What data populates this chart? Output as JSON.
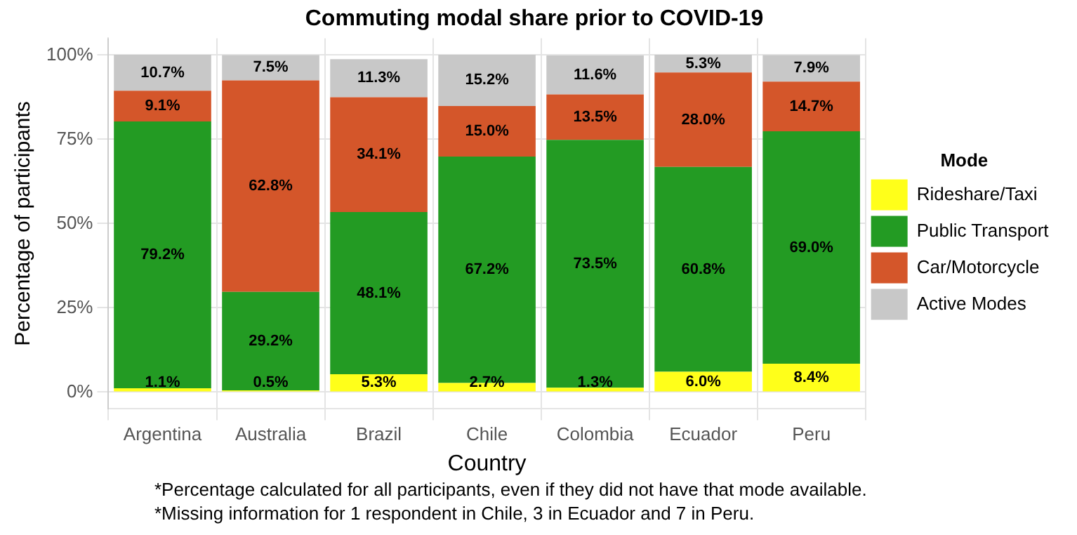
{
  "chart_data": {
    "type": "bar",
    "stacked": true,
    "title": "Commuting modal share prior to COVID-19",
    "xlabel": "Country",
    "ylabel": "Percentage of participants",
    "legend_title": "Mode",
    "legend": "right",
    "grid": true,
    "categories": [
      "Argentina",
      "Australia",
      "Brazil",
      "Chile",
      "Colombia",
      "Ecuador",
      "Peru"
    ],
    "ylim": [
      -5,
      105
    ],
    "yticks": [
      {
        "value": 0,
        "label": "0%"
      },
      {
        "value": 25,
        "label": "25%"
      },
      {
        "value": 50,
        "label": "50%"
      },
      {
        "value": 75,
        "label": "75%"
      },
      {
        "value": 100,
        "label": "100%"
      }
    ],
    "series": [
      {
        "name": "Rideshare/Taxi",
        "color": "#ffff1a",
        "values": [
          1.1,
          0.5,
          5.3,
          2.7,
          1.3,
          6.0,
          8.4
        ],
        "value_labels": [
          "1.1%",
          "0.5%",
          "5.3%",
          "2.7%",
          "1.3%",
          "6.0%",
          "8.4%"
        ]
      },
      {
        "name": "Public Transport",
        "color": "#239b23",
        "values": [
          79.2,
          29.2,
          48.1,
          67.2,
          73.5,
          60.8,
          69.0
        ],
        "value_labels": [
          "79.2%",
          "29.2%",
          "48.1%",
          "67.2%",
          "73.5%",
          "60.8%",
          "69.0%"
        ]
      },
      {
        "name": "Car/Motorcycle",
        "color": "#d4562a",
        "values": [
          9.1,
          62.8,
          34.1,
          15.0,
          13.5,
          28.0,
          14.7
        ],
        "value_labels": [
          "9.1%",
          "62.8%",
          "34.1%",
          "15.0%",
          "13.5%",
          "28.0%",
          "14.7%"
        ]
      },
      {
        "name": "Active Modes",
        "color": "#c8c8c8",
        "values": [
          10.7,
          7.5,
          11.3,
          15.2,
          11.6,
          5.3,
          7.9
        ],
        "value_labels": [
          "10.7%",
          "7.5%",
          "11.3%",
          "15.2%",
          "11.6%",
          "5.3%",
          "7.9%"
        ]
      }
    ],
    "annotations": [
      "*Percentage calculated for all participants, even if they did not have that mode available.",
      "*Missing information for 1 respondent in Chile, 3 in Ecuador and 7 in Peru."
    ]
  }
}
